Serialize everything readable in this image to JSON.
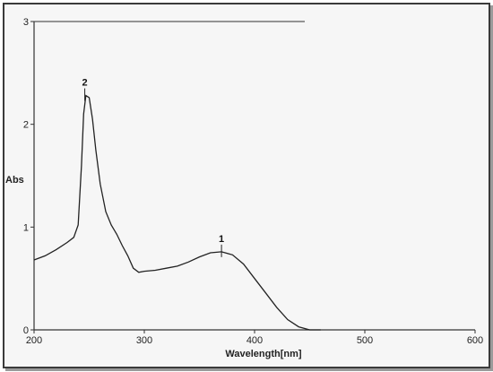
{
  "chart_data": {
    "type": "line",
    "xlabel": "Wavelength[nm]",
    "ylabel": "Abs",
    "xlim": [
      200,
      600
    ],
    "ylim": [
      0,
      3
    ],
    "x_ticks": [
      "200",
      "300",
      "400",
      "500",
      "600"
    ],
    "y_ticks": [
      "0",
      "1",
      "2",
      "3"
    ],
    "grid": false,
    "series": [
      {
        "x": [
          200,
          210,
          220,
          230,
          236,
          240,
          243,
          245,
          247,
          250,
          253,
          256,
          260,
          265,
          270,
          275,
          280,
          285,
          290,
          295,
          300,
          310,
          320,
          330,
          340,
          350,
          360,
          370,
          380,
          390,
          400,
          410,
          420,
          430,
          440,
          450,
          460
        ],
        "y": [
          0.68,
          0.72,
          0.78,
          0.85,
          0.9,
          1.02,
          1.6,
          2.1,
          2.28,
          2.26,
          2.05,
          1.75,
          1.42,
          1.15,
          1.02,
          0.93,
          0.82,
          0.72,
          0.6,
          0.56,
          0.57,
          0.58,
          0.6,
          0.62,
          0.66,
          0.71,
          0.75,
          0.76,
          0.73,
          0.64,
          0.5,
          0.36,
          0.22,
          0.1,
          0.03,
          0.0,
          0.0
        ],
        "color": "#222222"
      }
    ],
    "annotations": [
      {
        "label": "1",
        "x": 370,
        "y": 0.76
      },
      {
        "label": "2",
        "x": 246,
        "y": 2.28
      }
    ]
  }
}
